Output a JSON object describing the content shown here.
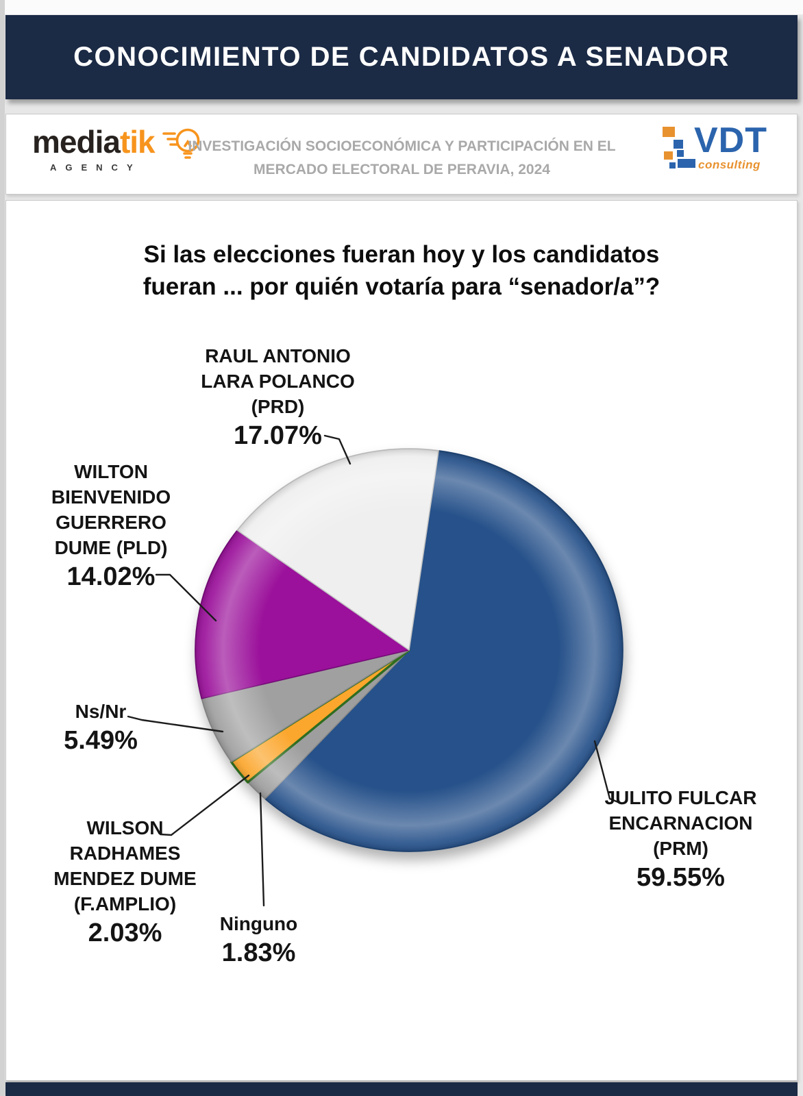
{
  "banner": {
    "title": "CONOCIMIENTO DE CANDIDATOS A SENADOR"
  },
  "header": {
    "mediatik": {
      "name_black": "media",
      "name_orange": "tik",
      "tagline": "AGENCY"
    },
    "study_title_line1": "INVESTIGACIÓN SOCIOECONÓMICA Y PARTICIPACIÓN EN EL",
    "study_title_line2": "MERCADO ELECTORAL DE PERAVIA, 2024",
    "vdt": {
      "name": "VDT",
      "tagline": "consulting"
    }
  },
  "question": {
    "line1": "Si las elecciones fueran hoy y los candidatos",
    "line2": "fueran ... por quién votaría para “senador/a”?"
  },
  "chart_data": {
    "type": "pie",
    "title": "Si las elecciones fueran hoy y los candidatos fueran ... por quién votaría para “senador/a”?",
    "direction": "clockwise",
    "start_angle_deg": 8,
    "legend_position": "callout-labels",
    "slices": [
      {
        "id": "prm",
        "label": "JULITO FULCAR ENCARNACION (PRM)",
        "value": 59.55,
        "color": "#26518a",
        "edge": "#1f4473"
      },
      {
        "id": "ninguno",
        "label": "Ninguno",
        "value": 1.83,
        "color": "#9e9e9e",
        "edge": "#8a8a8a"
      },
      {
        "id": "famplio",
        "label": "WILSON RADHAMES MENDEZ DUME (F.AMPLIO)",
        "value": 2.03,
        "color": "#fba62c",
        "edge": "#2f6d20",
        "outline": true
      },
      {
        "id": "nsnr",
        "label": "Ns/Nr",
        "value": 5.49,
        "color": "#a0a0a0",
        "edge": "#8a8a8a"
      },
      {
        "id": "pld",
        "label": "WILTON BIENVENIDO GUERRERO DUME (PLD)",
        "value": 14.02,
        "color": "#9b119b",
        "edge": "#740b77"
      },
      {
        "id": "prd",
        "label": "RAUL ANTONIO LARA POLANCO (PRD)",
        "value": 17.07,
        "color": "#efefef",
        "edge": "#c6c6c6"
      }
    ]
  },
  "labels": {
    "raul": {
      "name": "RAUL ANTONIO\nLARA POLANCO\n(PRD)",
      "pct": "17.07%"
    },
    "wilton": {
      "name": "WILTON\nBIENVENIDO\nGUERRERO\nDUME (PLD)",
      "pct": "14.02%"
    },
    "nsnr": {
      "name": "Ns/Nr",
      "pct": "5.49%"
    },
    "wilson": {
      "name": "WILSON\nRADHAMES\nMENDEZ DUME\n(F.AMPLIO)",
      "pct": "2.03%"
    },
    "ninguno": {
      "name": "Ninguno",
      "pct": "1.83%"
    },
    "julito": {
      "name": "JULITO FULCAR\nENCARNACION\n(PRM)",
      "pct": "59.55%"
    }
  },
  "colors": {
    "banner_navy": "#1b2a45",
    "mediatik_orange": "#f7941d",
    "mediatik_black": "#27221f",
    "vdt_blue": "#2b64ad",
    "vdt_orange": "#e8922f",
    "header_text_gray": "#a9a9a9"
  }
}
